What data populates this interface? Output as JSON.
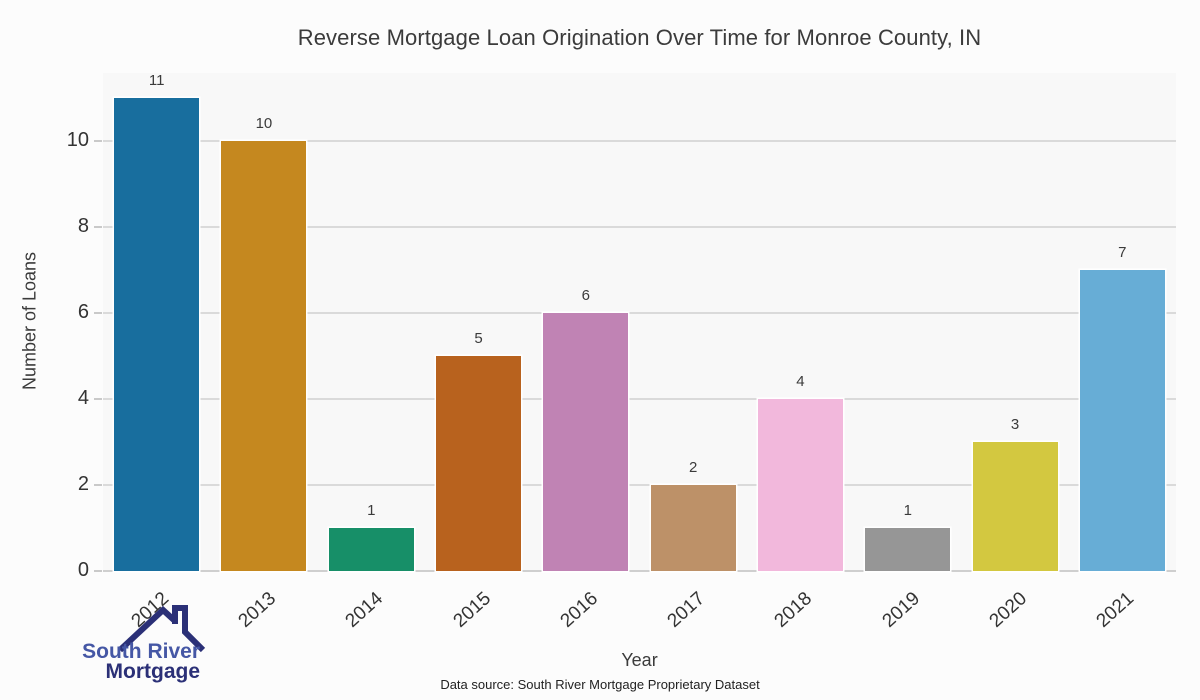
{
  "chart_data": {
    "type": "bar",
    "title": "Reverse Mortgage Loan Origination Over Time for Monroe County, IN",
    "categories": [
      "2012",
      "2013",
      "2014",
      "2015",
      "2016",
      "2017",
      "2018",
      "2019",
      "2020",
      "2021"
    ],
    "values": [
      11,
      10,
      1,
      5,
      6,
      2,
      4,
      1,
      3,
      7
    ],
    "bar_colors": [
      "#186e9e",
      "#c5881f",
      "#178f68",
      "#b8621e",
      "#c083b4",
      "#bd9168",
      "#f2b8dc",
      "#969696",
      "#d3c840",
      "#67add6"
    ],
    "xlabel": "Year",
    "ylabel": "Number of Loans",
    "yticks": [
      0,
      2,
      4,
      6,
      8,
      10
    ],
    "ylim": [
      0,
      11.58
    ],
    "grid": "horizontal-even-ticks",
    "value_labels": true,
    "legend": "none",
    "colors": {
      "plot_background": "#f8f8f8",
      "page_background": "#fcfcfc",
      "gridline": "#dadada",
      "baseline": "#cfcfcf",
      "tick_label": "#333333",
      "title_text": "#3b3b3b"
    }
  },
  "footer": {
    "source_note": "Data source: South River Mortgage Proprietary Dataset",
    "logo": {
      "line1": "South River",
      "line2": "Mortgage",
      "icon": "house-roof-icon",
      "color_primary": "#2b3077",
      "color_secondary": "#4557a5"
    }
  }
}
